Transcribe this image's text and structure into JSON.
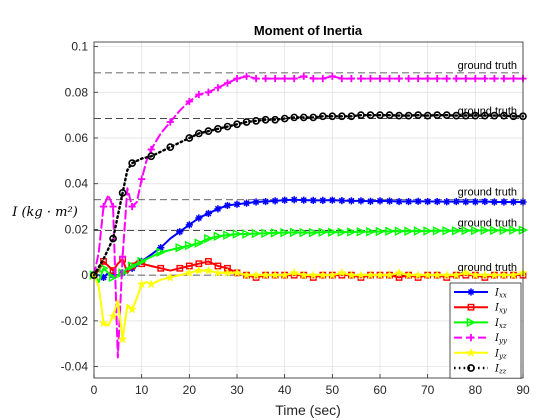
{
  "chart_data": {
    "type": "line",
    "title": "Moment of Inertia",
    "xlabel": "Time (sec)",
    "ylabel": "I (kg · m²)",
    "xlim": [
      0,
      90
    ],
    "ylim": [
      -0.045,
      0.102
    ],
    "xticks": [
      0,
      10,
      20,
      30,
      40,
      50,
      60,
      70,
      80,
      90
    ],
    "yticks": [
      -0.04,
      -0.02,
      0,
      0.02,
      0.04,
      0.06,
      0.08,
      0.1
    ],
    "ytick_labels": [
      "-0.04",
      "-0.02",
      "0",
      "0.02",
      "0.04",
      "0.06",
      "0.08",
      "0.1"
    ],
    "grid": true,
    "legend_position": "bottom-right",
    "reference_lines": [
      {
        "label": "ground truth",
        "y": 0.0885
      },
      {
        "label": "ground truth",
        "y": 0.0685
      },
      {
        "label": "ground truth",
        "y": 0.033
      },
      {
        "label": "ground truth",
        "y": 0.0195
      },
      {
        "label": "ground truth",
        "y": 0.0
      }
    ],
    "series": [
      {
        "name": "Ixx",
        "name_main": "I",
        "name_sub": "xx",
        "color": "#0000ff",
        "marker": "asterisk",
        "dash": "solid",
        "x": [
          0,
          1,
          2,
          3,
          4,
          5,
          6,
          7,
          8,
          9,
          10,
          12,
          14,
          16,
          18,
          20,
          22,
          24,
          26,
          28,
          30,
          32,
          34,
          36,
          38,
          40,
          42,
          44,
          46,
          48,
          50,
          52,
          54,
          56,
          58,
          60,
          62,
          64,
          66,
          68,
          70,
          72,
          74,
          76,
          78,
          80,
          82,
          84,
          86,
          88,
          90
        ],
        "y": [
          0,
          0,
          -0.001,
          0.001,
          0,
          0,
          0.001,
          0.002,
          0.003,
          0.004,
          0.006,
          0.009,
          0.012,
          0.016,
          0.019,
          0.022,
          0.025,
          0.027,
          0.029,
          0.0305,
          0.031,
          0.0315,
          0.032,
          0.0322,
          0.0325,
          0.0328,
          0.033,
          0.0328,
          0.0327,
          0.0327,
          0.0328,
          0.0326,
          0.0325,
          0.0325,
          0.0323,
          0.0325,
          0.0324,
          0.0322,
          0.0322,
          0.0323,
          0.0322,
          0.0322,
          0.0321,
          0.0322,
          0.0321,
          0.0321,
          0.0322,
          0.032,
          0.032,
          0.032,
          0.032
        ]
      },
      {
        "name": "Ixy",
        "name_main": "I",
        "name_sub": "xy",
        "color": "#ff0000",
        "marker": "square",
        "dash": "solid",
        "x": [
          0,
          1,
          2,
          3,
          4,
          5,
          6,
          7,
          8,
          9,
          10,
          12,
          14,
          16,
          18,
          20,
          22,
          24,
          26,
          28,
          30,
          32,
          34,
          36,
          38,
          40,
          42,
          44,
          46,
          48,
          50,
          52,
          54,
          56,
          58,
          60,
          62,
          64,
          66,
          68,
          70,
          72,
          74,
          76,
          78,
          80,
          82,
          84,
          86,
          88,
          90
        ],
        "y": [
          0,
          0.002,
          0.006,
          0.004,
          0.002,
          0.005,
          0.007,
          0.001,
          0.004,
          0.006,
          0.005,
          0.004,
          0.003,
          0.002,
          0.003,
          0.004,
          0.005,
          0.006,
          0.004,
          0.003,
          0.001,
          0,
          -0.001,
          0,
          0,
          0,
          0,
          0,
          -0.001,
          0,
          0,
          0,
          0,
          -0.001,
          0,
          0,
          0,
          -0.001,
          0,
          -0.001,
          0,
          0,
          -0.001,
          0,
          0,
          0,
          -0.001,
          0,
          0,
          0,
          0
        ]
      },
      {
        "name": "Ixz",
        "name_main": "I",
        "name_sub": "xz",
        "color": "#00ff00",
        "marker": "triangle-right",
        "dash": "solid",
        "x": [
          0,
          1,
          2,
          3,
          4,
          5,
          6,
          7,
          8,
          9,
          10,
          12,
          14,
          16,
          18,
          20,
          22,
          24,
          26,
          28,
          30,
          32,
          34,
          36,
          38,
          40,
          42,
          44,
          46,
          48,
          50,
          52,
          54,
          56,
          58,
          60,
          62,
          64,
          66,
          68,
          70,
          72,
          74,
          76,
          78,
          80,
          82,
          84,
          86,
          88,
          90
        ],
        "y": [
          0,
          -0.003,
          0.003,
          0.001,
          -0.001,
          0,
          0.001,
          0.003,
          0.004,
          0.005,
          0.006,
          0.008,
          0.01,
          0.011,
          0.012,
          0.013,
          0.014,
          0.016,
          0.017,
          0.0175,
          0.018,
          0.018,
          0.0182,
          0.0183,
          0.0185,
          0.0186,
          0.0187,
          0.0186,
          0.0186,
          0.0188,
          0.0188,
          0.0188,
          0.0189,
          0.019,
          0.019,
          0.0191,
          0.0192,
          0.0192,
          0.0192,
          0.0193,
          0.0193,
          0.0194,
          0.0194,
          0.0194,
          0.0195,
          0.0195,
          0.0196,
          0.0196,
          0.0196,
          0.0197,
          0.0197
        ]
      },
      {
        "name": "Iyy",
        "name_main": "I",
        "name_sub": "yy",
        "color": "#ff00ff",
        "marker": "plus",
        "dash": "dashed",
        "x": [
          0,
          1,
          2,
          3,
          4,
          5,
          6,
          7,
          8,
          9,
          10,
          11,
          12,
          14,
          16,
          18,
          20,
          22,
          24,
          26,
          28,
          30,
          32,
          34,
          36,
          38,
          40,
          42,
          44,
          46,
          48,
          50,
          52,
          54,
          56,
          58,
          60,
          62,
          64,
          66,
          68,
          70,
          72,
          74,
          76,
          78,
          80,
          82,
          84,
          86,
          88,
          90
        ],
        "y": [
          0,
          0.01,
          0.03,
          0.035,
          0.03,
          -0.036,
          0.008,
          0.038,
          0.03,
          0.032,
          0.042,
          0.05,
          0.055,
          0.062,
          0.067,
          0.072,
          0.076,
          0.079,
          0.08,
          0.082,
          0.084,
          0.086,
          0.087,
          0.086,
          0.086,
          0.086,
          0.086,
          0.086,
          0.087,
          0.086,
          0.086,
          0.087,
          0.086,
          0.086,
          0.086,
          0.086,
          0.086,
          0.086,
          0.086,
          0.086,
          0.086,
          0.086,
          0.086,
          0.086,
          0.086,
          0.086,
          0.086,
          0.086,
          0.086,
          0.086,
          0.086,
          0.086
        ]
      },
      {
        "name": "Iyz",
        "name_main": "I",
        "name_sub": "yz",
        "color": "#ffff00",
        "marker": "star",
        "dash": "solid",
        "x": [
          0,
          1,
          2,
          3,
          4,
          5,
          6,
          7,
          8,
          9,
          10,
          11,
          12,
          14,
          16,
          18,
          20,
          22,
          24,
          26,
          28,
          30,
          32,
          34,
          36,
          38,
          40,
          42,
          44,
          46,
          48,
          50,
          52,
          54,
          56,
          58,
          60,
          62,
          64,
          66,
          68,
          70,
          72,
          74,
          76,
          78,
          80,
          82,
          84,
          86,
          88,
          90
        ],
        "y": [
          0,
          -0.005,
          -0.021,
          -0.022,
          -0.018,
          -0.011,
          -0.028,
          -0.013,
          -0.015,
          -0.01,
          -0.004,
          -0.003,
          -0.004,
          -0.002,
          -0.001,
          0,
          0.001,
          0.002,
          0.002,
          0.001,
          0.001,
          0.001,
          0,
          0,
          0,
          0,
          0,
          0.001,
          0,
          0,
          0,
          0,
          0.001,
          0,
          0,
          0,
          0,
          0,
          0.001,
          0,
          0,
          0,
          0,
          0,
          0,
          0.001,
          0,
          0,
          0,
          0,
          0,
          0.001
        ]
      },
      {
        "name": "Izz",
        "name_main": "I",
        "name_sub": "zz",
        "color": "#000000",
        "marker": "circle",
        "dash": "dotted",
        "x": [
          0,
          2,
          4,
          5,
          6,
          7,
          8,
          10,
          12,
          14,
          16,
          18,
          20,
          22,
          24,
          26,
          28,
          30,
          32,
          34,
          36,
          38,
          40,
          42,
          44,
          46,
          48,
          50,
          52,
          54,
          56,
          58,
          60,
          62,
          64,
          66,
          68,
          70,
          72,
          74,
          76,
          78,
          80,
          82,
          84,
          86,
          88,
          90
        ],
        "y": [
          0,
          0.007,
          0.016,
          0.026,
          0.036,
          0.046,
          0.049,
          0.051,
          0.052,
          0.054,
          0.056,
          0.058,
          0.06,
          0.062,
          0.063,
          0.064,
          0.065,
          0.066,
          0.067,
          0.0675,
          0.068,
          0.068,
          0.0685,
          0.069,
          0.069,
          0.069,
          0.0695,
          0.0695,
          0.0695,
          0.0695,
          0.07,
          0.07,
          0.07,
          0.07,
          0.0698,
          0.0698,
          0.07,
          0.0698,
          0.07,
          0.07,
          0.0698,
          0.0698,
          0.0698,
          0.0698,
          0.0698,
          0.0698,
          0.0695,
          0.0695
        ]
      }
    ]
  }
}
